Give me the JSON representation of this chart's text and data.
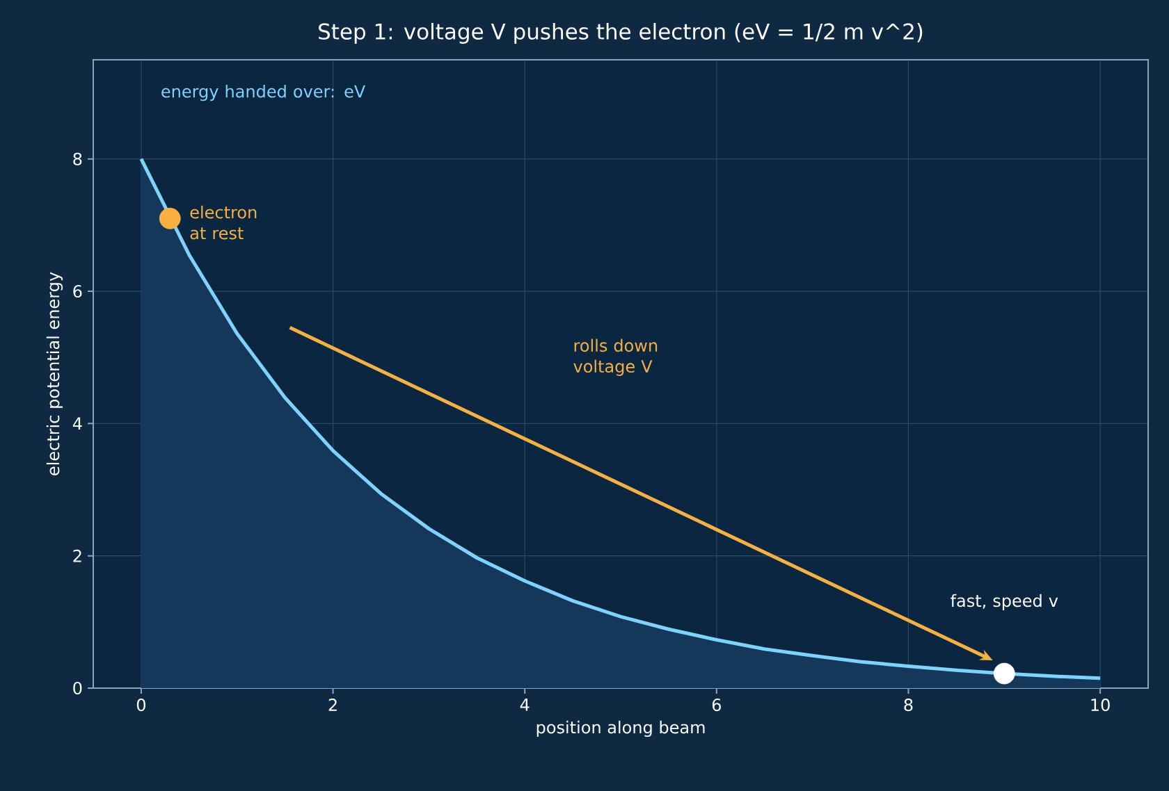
{
  "chart_data": {
    "type": "area",
    "title": "Step 1: voltage V pushes the electron  (eV = 1/2 m v^2)",
    "xlabel": "position along beam",
    "ylabel": "electric potential energy",
    "series": [
      {
        "color": "#7dd3fc",
        "x": [
          0,
          0.5,
          1,
          1.5,
          2,
          2.5,
          3,
          3.5,
          4,
          4.5,
          5,
          5.5,
          6,
          6.5,
          7,
          7.5,
          8,
          8.5,
          9,
          9.5,
          10
        ],
        "values": [
          8,
          6.55,
          5.36,
          4.39,
          3.59,
          2.94,
          2.41,
          1.97,
          1.62,
          1.32,
          1.08,
          0.89,
          0.73,
          0.59,
          0.49,
          0.4,
          0.33,
          0.27,
          0.22,
          0.18,
          0.15
        ]
      },
      {
        "type": "scatter",
        "color": "#fbb040",
        "x": [
          0.3
        ],
        "values": [
          7.1
        ]
      },
      {
        "type": "scatter",
        "color": "#ffffff",
        "x": [
          9
        ],
        "values": [
          0.22
        ]
      }
    ],
    "annotations": [
      "energy handed over: eV",
      {
        "text": "electron at rest",
        "x": 0.3,
        "y": 7.1
      },
      "rolls down voltage V",
      "fast, speed v"
    ],
    "xlim": [
      -0.5,
      10.5
    ],
    "ylim": [
      0,
      9.5
    ],
    "xticks": [
      0,
      2,
      4,
      6,
      8,
      10
    ],
    "yticks": [
      0,
      2,
      4,
      6,
      8
    ],
    "grid": true,
    "line_style": "solid"
  }
}
